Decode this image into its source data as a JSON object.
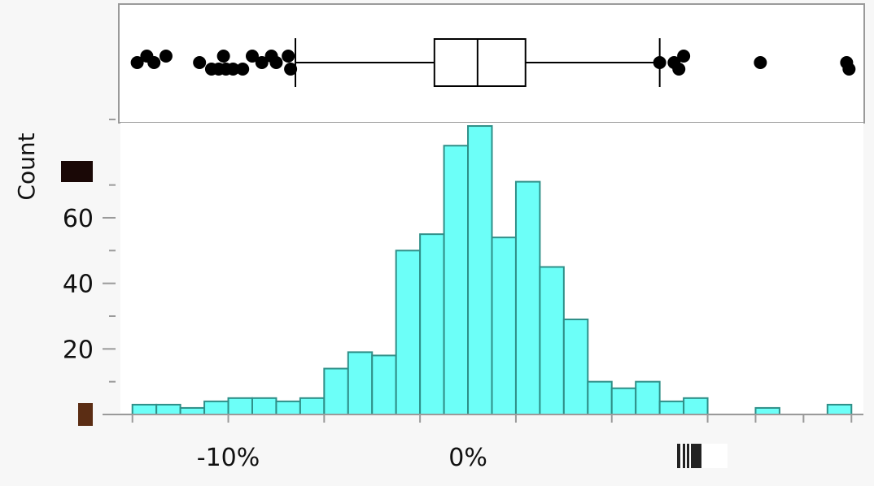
{
  "chart_data": [
    {
      "type": "boxplot",
      "orientation": "horizontal",
      "box": {
        "min_whisker": -7.2,
        "q1": -1.4,
        "median": 0.4,
        "q3": 2.4,
        "max_whisker": 8.0
      },
      "outliers": [
        {
          "x": -13.8,
          "row": 0
        },
        {
          "x": -13.4,
          "row": -1
        },
        {
          "x": -13.1,
          "row": 0
        },
        {
          "x": -12.6,
          "row": -1
        },
        {
          "x": -11.2,
          "row": 0
        },
        {
          "x": -10.7,
          "row": 1
        },
        {
          "x": -10.4,
          "row": 1
        },
        {
          "x": -10.2,
          "row": -1
        },
        {
          "x": -10.1,
          "row": 1
        },
        {
          "x": -9.8,
          "row": 1
        },
        {
          "x": -9.4,
          "row": 1
        },
        {
          "x": -9.0,
          "row": -1
        },
        {
          "x": -8.6,
          "row": 0
        },
        {
          "x": -8.2,
          "row": -1
        },
        {
          "x": -8.0,
          "row": 0
        },
        {
          "x": -7.5,
          "row": -1
        },
        {
          "x": -7.4,
          "row": 1
        },
        {
          "x": 8.0,
          "row": 0
        },
        {
          "x": 8.6,
          "row": 0
        },
        {
          "x": 8.8,
          "row": 1
        },
        {
          "x": 9.0,
          "row": -1
        },
        {
          "x": 12.2,
          "row": 0
        },
        {
          "x": 15.8,
          "row": 0
        },
        {
          "x": 15.9,
          "row": 1
        }
      ]
    },
    {
      "type": "histogram",
      "ylabel": "Count",
      "xlim": [
        -14.5,
        16.5
      ],
      "ylim": [
        0,
        89
      ],
      "x_tick_labels": [
        {
          "value": -10,
          "label": "-10%"
        },
        {
          "value": 0,
          "label": "0%"
        }
      ],
      "y_tick_labels": [
        {
          "value": 20,
          "label": "20"
        },
        {
          "value": 40,
          "label": "40"
        },
        {
          "value": 60,
          "label": "60"
        }
      ],
      "x_ticks": [
        -14,
        -10,
        -6,
        -2,
        2,
        6,
        10,
        12,
        14,
        16
      ],
      "y_minor_ticks": [
        10,
        30,
        50,
        70,
        90
      ],
      "bin_start": -14,
      "bin_width": 1,
      "counts": [
        3,
        3,
        2,
        4,
        5,
        5,
        4,
        5,
        14,
        19,
        18,
        50,
        55,
        82,
        88,
        54,
        71,
        45,
        29,
        10,
        8,
        10,
        4,
        5,
        0,
        0,
        2,
        0,
        0,
        3
      ],
      "bar_color": "#6cfff8",
      "bar_edge_color": "#2f8f88"
    }
  ]
}
